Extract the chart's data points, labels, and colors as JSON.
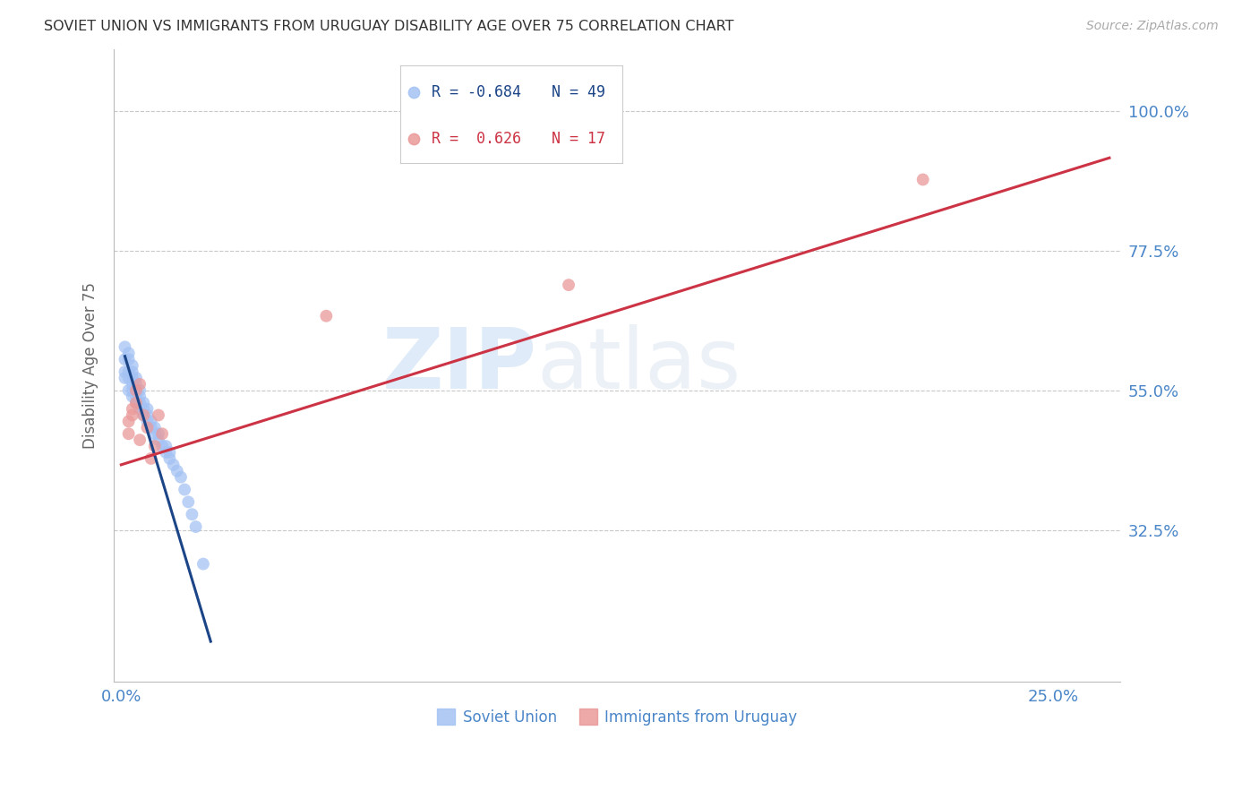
{
  "title": "SOVIET UNION VS IMMIGRANTS FROM URUGUAY DISABILITY AGE OVER 75 CORRELATION CHART",
  "source": "Source: ZipAtlas.com",
  "ylabel_label": "Disability Age Over 75",
  "y_ticks": [
    0.325,
    0.55,
    0.775,
    1.0
  ],
  "y_tick_labels": [
    "32.5%",
    "55.0%",
    "77.5%",
    "100.0%"
  ],
  "x_tick_positions": [
    0.0,
    0.05,
    0.1,
    0.15,
    0.2,
    0.25
  ],
  "x_tick_labels": [
    "0.0%",
    "",
    "",
    "",
    "",
    "25.0%"
  ],
  "xlim": [
    -0.002,
    0.268
  ],
  "ylim": [
    0.08,
    1.1
  ],
  "background_color": "#ffffff",
  "grid_color": "#c8c8c8",
  "legend_r1": "R = -0.684",
  "legend_n1": "N = 49",
  "legend_r2": "R =  0.626",
  "legend_n2": "N = 17",
  "series1_color": "#a4c2f4",
  "series2_color": "#ea9999",
  "line1_color": "#1c4587",
  "line2_color": "#cc3344",
  "tick_color": "#4a86c8",
  "watermark_zip": "ZIP",
  "watermark_atlas": "atlas",
  "soviet_x": [
    0.001,
    0.001,
    0.001,
    0.001,
    0.002,
    0.002,
    0.002,
    0.002,
    0.002,
    0.003,
    0.003,
    0.003,
    0.003,
    0.003,
    0.003,
    0.004,
    0.004,
    0.004,
    0.004,
    0.004,
    0.005,
    0.005,
    0.005,
    0.005,
    0.006,
    0.006,
    0.006,
    0.007,
    0.007,
    0.007,
    0.008,
    0.008,
    0.009,
    0.009,
    0.01,
    0.01,
    0.011,
    0.012,
    0.012,
    0.013,
    0.013,
    0.014,
    0.015,
    0.016,
    0.017,
    0.018,
    0.019,
    0.02,
    0.022
  ],
  "soviet_y": [
    0.57,
    0.58,
    0.6,
    0.62,
    0.55,
    0.57,
    0.58,
    0.6,
    0.61,
    0.54,
    0.55,
    0.56,
    0.57,
    0.58,
    0.59,
    0.53,
    0.54,
    0.55,
    0.56,
    0.57,
    0.52,
    0.53,
    0.54,
    0.55,
    0.51,
    0.52,
    0.53,
    0.5,
    0.51,
    0.52,
    0.49,
    0.5,
    0.48,
    0.49,
    0.47,
    0.48,
    0.46,
    0.45,
    0.46,
    0.44,
    0.45,
    0.43,
    0.42,
    0.41,
    0.39,
    0.37,
    0.35,
    0.33,
    0.27
  ],
  "uruguay_x": [
    0.002,
    0.002,
    0.003,
    0.003,
    0.004,
    0.004,
    0.005,
    0.005,
    0.006,
    0.007,
    0.008,
    0.009,
    0.01,
    0.011,
    0.055,
    0.12,
    0.215
  ],
  "uruguay_y": [
    0.48,
    0.5,
    0.51,
    0.52,
    0.53,
    0.55,
    0.47,
    0.56,
    0.51,
    0.49,
    0.44,
    0.46,
    0.51,
    0.48,
    0.67,
    0.72,
    0.89
  ],
  "line1_x": [
    0.001,
    0.024
  ],
  "line1_y": [
    0.605,
    0.145
  ],
  "line2_x": [
    0.0,
    0.265
  ],
  "line2_y": [
    0.43,
    0.925
  ]
}
